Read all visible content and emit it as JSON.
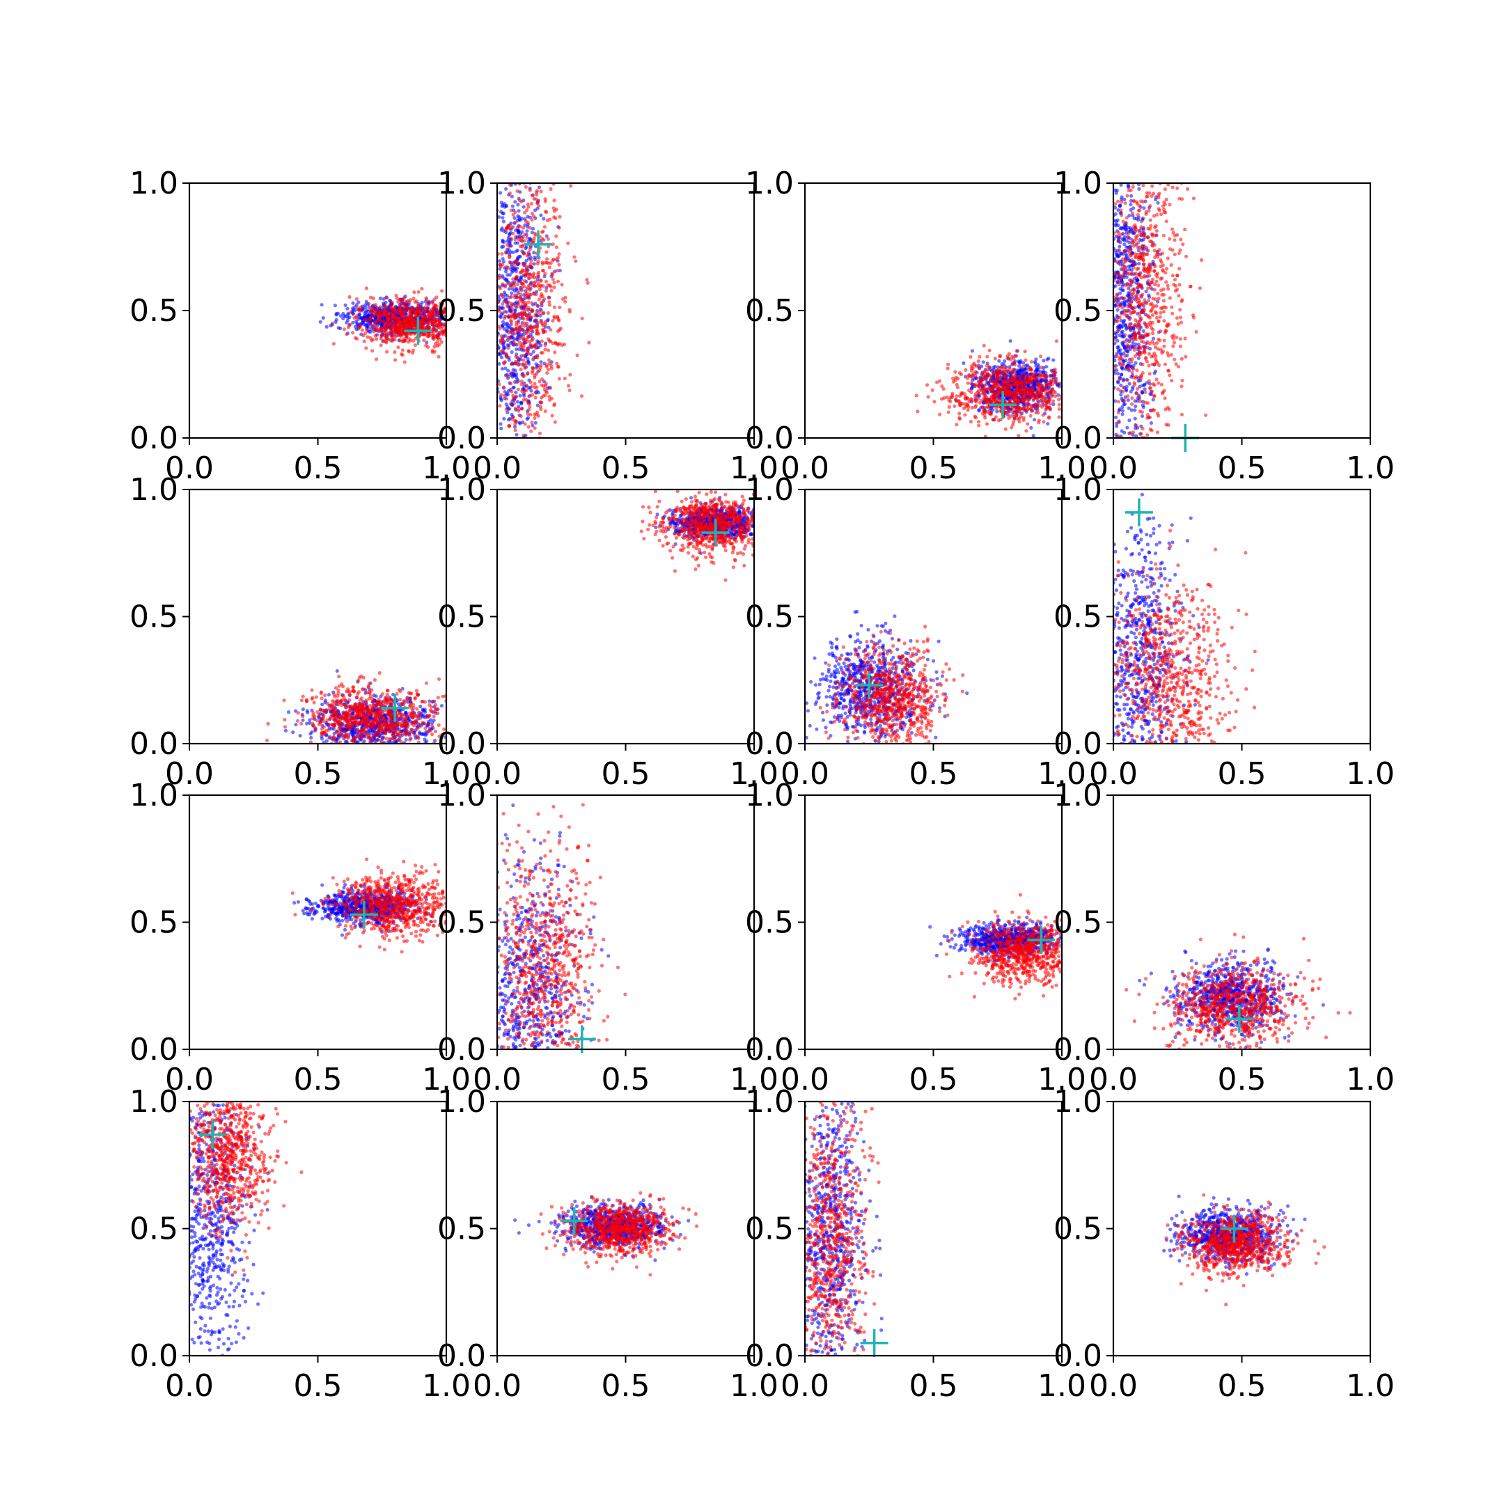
{
  "chart_data": [
    {
      "type": "scatter",
      "x_range": [
        0,
        1
      ],
      "y_range": [
        0,
        1
      ],
      "blue": {
        "cx": 0.8,
        "cy": 0.47,
        "sx": 0.1,
        "sy": 0.03
      },
      "red": {
        "cx": 0.87,
        "cy": 0.45,
        "sx": 0.11,
        "sy": 0.05
      },
      "centroid": [
        0.89,
        0.42
      ]
    },
    {
      "type": "scatter",
      "x_range": [
        0,
        1
      ],
      "y_range": [
        0,
        1
      ],
      "blue": {
        "cx": 0.07,
        "cy": 0.5,
        "sx": 0.06,
        "sy": 0.3
      },
      "red": {
        "cx": 0.12,
        "cy": 0.5,
        "sx": 0.08,
        "sy": 0.3
      },
      "centroid": [
        0.16,
        0.76
      ]
    },
    {
      "type": "scatter",
      "x_range": [
        0,
        1
      ],
      "y_range": [
        0,
        1
      ],
      "blue": {
        "cx": 0.82,
        "cy": 0.2,
        "sx": 0.08,
        "sy": 0.05
      },
      "red": {
        "cx": 0.8,
        "cy": 0.18,
        "sx": 0.12,
        "sy": 0.06
      },
      "centroid": [
        0.77,
        0.13
      ]
    },
    {
      "type": "scatter",
      "x_range": [
        0,
        1
      ],
      "y_range": [
        0,
        1
      ],
      "blue": {
        "cx": 0.05,
        "cy": 0.5,
        "sx": 0.05,
        "sy": 0.3
      },
      "red": {
        "cx": 0.12,
        "cy": 0.55,
        "sx": 0.08,
        "sy": 0.3
      },
      "centroid": [
        0.28,
        0.0
      ]
    },
    {
      "type": "scatter",
      "x_range": [
        0,
        1
      ],
      "y_range": [
        0,
        1
      ],
      "blue": {
        "cx": 0.72,
        "cy": 0.08,
        "sx": 0.12,
        "sy": 0.05
      },
      "red": {
        "cx": 0.7,
        "cy": 0.1,
        "sx": 0.13,
        "sy": 0.06
      },
      "centroid": [
        0.8,
        0.14
      ]
    },
    {
      "type": "scatter",
      "x_range": [
        0,
        1
      ],
      "y_range": [
        0,
        1
      ],
      "blue": {
        "cx": 0.85,
        "cy": 0.87,
        "sx": 0.08,
        "sy": 0.03
      },
      "red": {
        "cx": 0.85,
        "cy": 0.86,
        "sx": 0.11,
        "sy": 0.06
      },
      "centroid": [
        0.85,
        0.83
      ]
    },
    {
      "type": "scatter",
      "x_range": [
        0,
        1
      ],
      "y_range": [
        0,
        1
      ],
      "blue": {
        "cx": 0.25,
        "cy": 0.22,
        "sx": 0.1,
        "sy": 0.1
      },
      "red": {
        "cx": 0.33,
        "cy": 0.18,
        "sx": 0.1,
        "sy": 0.1
      },
      "centroid": [
        0.25,
        0.23
      ]
    },
    {
      "type": "scatter",
      "x_range": [
        0,
        1
      ],
      "y_range": [
        0,
        1
      ],
      "blue": {
        "cx": 0.1,
        "cy": 0.3,
        "sx": 0.08,
        "sy": 0.3
      },
      "red": {
        "cx": 0.22,
        "cy": 0.25,
        "sx": 0.12,
        "sy": 0.2
      },
      "centroid": [
        0.1,
        0.91
      ]
    },
    {
      "type": "scatter",
      "x_range": [
        0,
        1
      ],
      "y_range": [
        0,
        1
      ],
      "blue": {
        "cx": 0.68,
        "cy": 0.56,
        "sx": 0.1,
        "sy": 0.03
      },
      "red": {
        "cx": 0.8,
        "cy": 0.57,
        "sx": 0.12,
        "sy": 0.06
      },
      "centroid": [
        0.68,
        0.53
      ]
    },
    {
      "type": "scatter",
      "x_range": [
        0,
        1
      ],
      "y_range": [
        0,
        1
      ],
      "blue": {
        "cx": 0.12,
        "cy": 0.2,
        "sx": 0.1,
        "sy": 0.25
      },
      "red": {
        "cx": 0.18,
        "cy": 0.3,
        "sx": 0.1,
        "sy": 0.25
      },
      "centroid": [
        0.33,
        0.04
      ]
    },
    {
      "type": "scatter",
      "x_range": [
        0,
        1
      ],
      "y_range": [
        0,
        1
      ],
      "blue": {
        "cx": 0.8,
        "cy": 0.43,
        "sx": 0.1,
        "sy": 0.03
      },
      "red": {
        "cx": 0.85,
        "cy": 0.38,
        "sx": 0.1,
        "sy": 0.06
      },
      "centroid": [
        0.92,
        0.43
      ]
    },
    {
      "type": "scatter",
      "x_range": [
        0,
        1
      ],
      "y_range": [
        0,
        1
      ],
      "blue": {
        "cx": 0.45,
        "cy": 0.2,
        "sx": 0.1,
        "sy": 0.07
      },
      "red": {
        "cx": 0.47,
        "cy": 0.17,
        "sx": 0.13,
        "sy": 0.09
      },
      "centroid": [
        0.49,
        0.12
      ]
    },
    {
      "type": "scatter",
      "x_range": [
        0,
        1
      ],
      "y_range": [
        0,
        1
      ],
      "blue": {
        "cx": 0.08,
        "cy": 0.55,
        "sx": 0.08,
        "sy": 0.3
      },
      "red": {
        "cx": 0.15,
        "cy": 0.78,
        "sx": 0.08,
        "sy": 0.14
      },
      "centroid": [
        0.09,
        0.87
      ]
    },
    {
      "type": "scatter",
      "x_range": [
        0,
        1
      ],
      "y_range": [
        0,
        1
      ],
      "blue": {
        "cx": 0.45,
        "cy": 0.51,
        "sx": 0.1,
        "sy": 0.04
      },
      "red": {
        "cx": 0.47,
        "cy": 0.5,
        "sx": 0.1,
        "sy": 0.05
      },
      "centroid": [
        0.3,
        0.53
      ]
    },
    {
      "type": "scatter",
      "x_range": [
        0,
        1
      ],
      "y_range": [
        0,
        1
      ],
      "blue": {
        "cx": 0.1,
        "cy": 0.5,
        "sx": 0.07,
        "sy": 0.3
      },
      "red": {
        "cx": 0.1,
        "cy": 0.45,
        "sx": 0.07,
        "sy": 0.3
      },
      "centroid": [
        0.27,
        0.05
      ]
    },
    {
      "type": "scatter",
      "x_range": [
        0,
        1
      ],
      "y_range": [
        0,
        1
      ],
      "blue": {
        "cx": 0.45,
        "cy": 0.47,
        "sx": 0.1,
        "sy": 0.05
      },
      "red": {
        "cx": 0.48,
        "cy": 0.44,
        "sx": 0.1,
        "sy": 0.06
      },
      "centroid": [
        0.47,
        0.5
      ]
    }
  ],
  "tick_labels": [
    "0.0",
    "0.5",
    "1.0"
  ],
  "colors": {
    "series_a": "#0000ff",
    "series_b": "#ff0000",
    "centroid": "#1fb4b4",
    "axes": "#000000"
  }
}
